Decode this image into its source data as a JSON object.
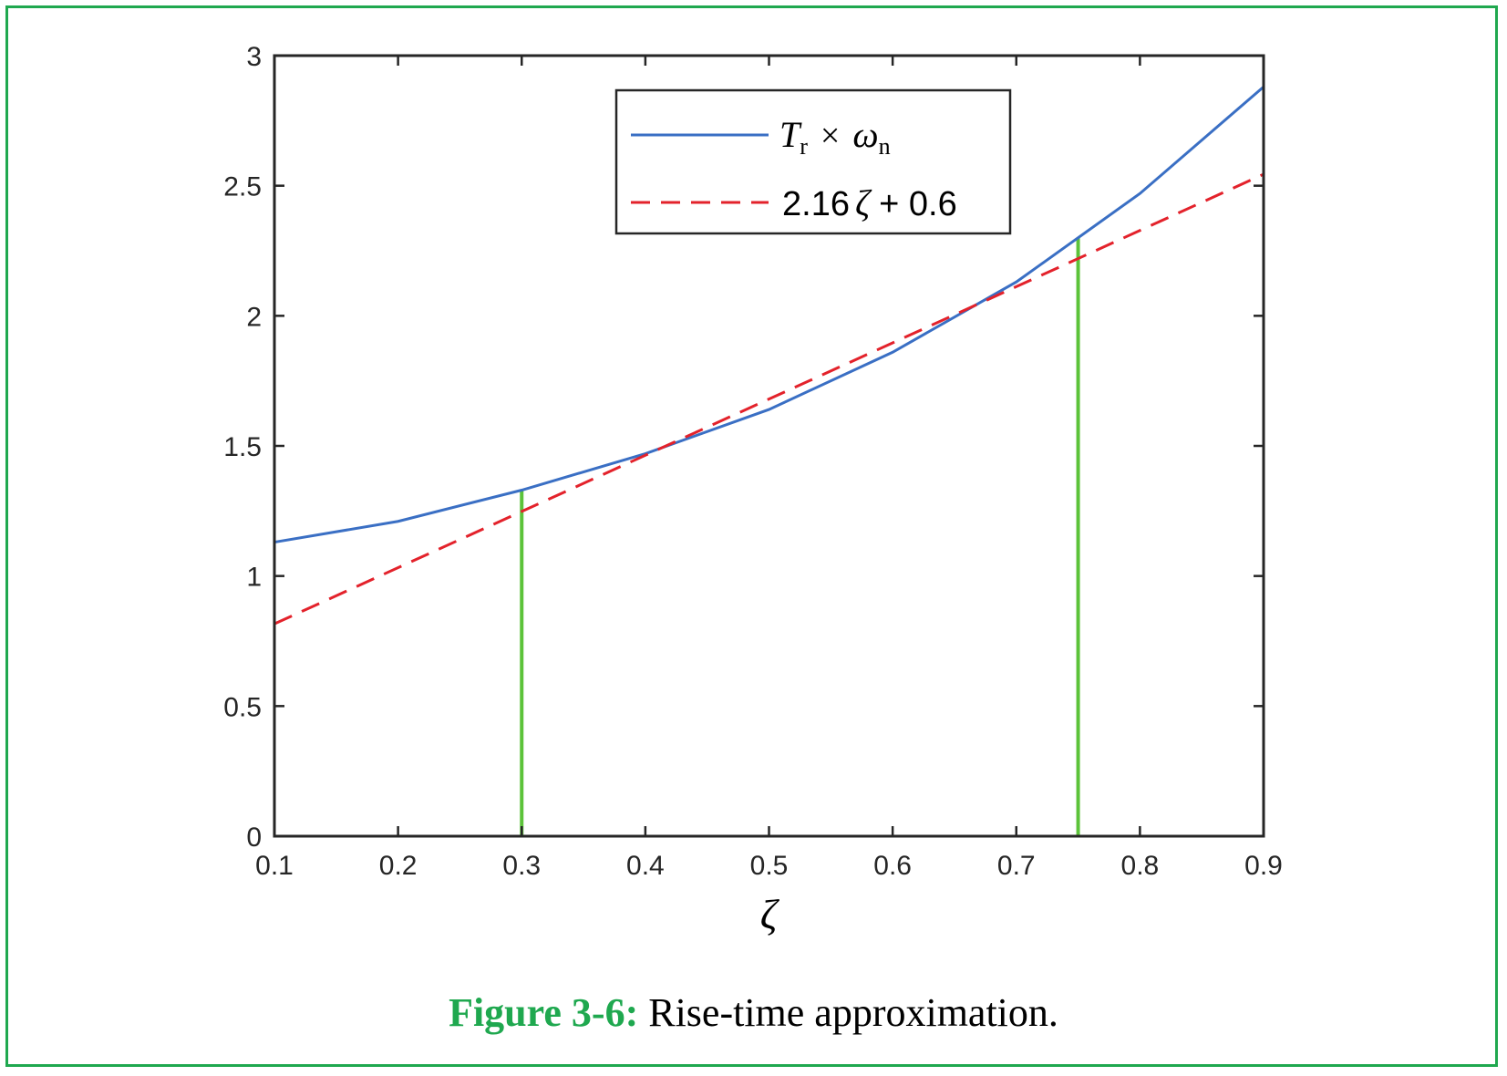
{
  "caption": {
    "label": "Figure 3-6:",
    "text": " Rise-time approximation."
  },
  "colors": {
    "frame": "#1fa84f",
    "series_actual": "#3a6fc4",
    "series_fit": "#e3222b",
    "markers": "#5cc33a",
    "axis": "#262626"
  },
  "chart_data": {
    "type": "line",
    "xlabel": "ζ",
    "ylabel": "",
    "xlim": [
      0.1,
      0.9
    ],
    "ylim": [
      0,
      3
    ],
    "xticks": [
      0.1,
      0.2,
      0.3,
      0.4,
      0.5,
      0.6,
      0.7,
      0.8,
      0.9
    ],
    "yticks": [
      0,
      0.5,
      1,
      1.5,
      2,
      2.5,
      3
    ],
    "xtick_labels": [
      "0.1",
      "0.2",
      "0.3",
      "0.4",
      "0.5",
      "0.6",
      "0.7",
      "0.8",
      "0.9"
    ],
    "ytick_labels": [
      "0",
      "0.5",
      "1",
      "1.5",
      "2",
      "2.5",
      "3"
    ],
    "legend_position": "top-right",
    "series": [
      {
        "name": "Tr × ωn",
        "style": "solid",
        "x": [
          0.1,
          0.2,
          0.3,
          0.4,
          0.5,
          0.6,
          0.7,
          0.8,
          0.9
        ],
        "y": [
          1.13,
          1.21,
          1.33,
          1.47,
          1.64,
          1.86,
          2.13,
          2.47,
          2.88
        ]
      },
      {
        "name": "2.16 ζ + 0.6",
        "style": "dashed",
        "x": [
          0.1,
          0.9
        ],
        "y": [
          0.816,
          2.544
        ]
      }
    ],
    "markers": [
      {
        "x": 0.3,
        "y": 1.33
      },
      {
        "x": 0.75,
        "y": 2.3
      }
    ],
    "legend": {
      "series1": {
        "main": "T",
        "sub": "r",
        "times": "×",
        "var": "ω",
        "var_sub": "n"
      },
      "series2": {
        "coef": "2.16",
        "var": "ζ",
        "rest": "+ 0.6"
      }
    }
  }
}
